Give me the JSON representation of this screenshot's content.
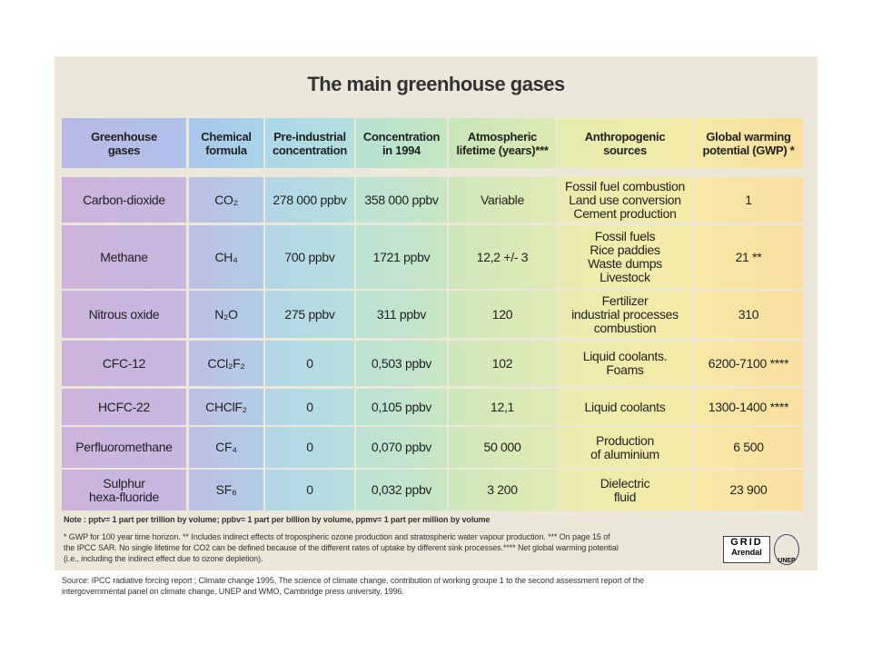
{
  "title": "The main greenhouse gases",
  "table": {
    "header": [
      [
        "Greenhouse",
        "gases"
      ],
      [
        "Chemical",
        "formula"
      ],
      [
        "Pre-industrial",
        "concentration"
      ],
      [
        "Concentration",
        "in 1994"
      ],
      [
        "Atmospheric",
        "lifetime (years)***"
      ],
      [
        "Anthropogenic",
        "sources"
      ],
      [
        "Global warming",
        "potential (GWP) *"
      ]
    ],
    "rows": [
      [
        [
          "Carbon-dioxide"
        ],
        [
          "CO₂"
        ],
        [
          "278 000 ppbv"
        ],
        [
          "358 000 ppbv"
        ],
        [
          "Variable"
        ],
        [
          "Fossil fuel combustion",
          "Land use conversion",
          "Cement production"
        ],
        [
          "1"
        ]
      ],
      [
        [
          "Methane"
        ],
        [
          "CH₄"
        ],
        [
          "700 ppbv"
        ],
        [
          "1721 ppbv"
        ],
        [
          "12,2 +/- 3"
        ],
        [
          "Fossil fuels",
          "Rice paddies",
          "Waste dumps",
          "Livestock"
        ],
        [
          "21 **"
        ]
      ],
      [
        [
          "Nitrous oxide"
        ],
        [
          "N₂O"
        ],
        [
          "275 ppbv"
        ],
        [
          "311 ppbv"
        ],
        [
          "120"
        ],
        [
          "Fertilizer",
          "industrial processes",
          "combustion"
        ],
        [
          "310"
        ]
      ],
      [
        [
          "CFC-12"
        ],
        [
          "CCl₂F₂"
        ],
        [
          "0"
        ],
        [
          "0,503 ppbv"
        ],
        [
          "102"
        ],
        [
          "Liquid coolants.",
          "Foams"
        ],
        [
          "6200-7100 ****"
        ]
      ],
      [
        [
          "HCFC-22"
        ],
        [
          "CHClF₂"
        ],
        [
          "0"
        ],
        [
          "0,105 ppbv"
        ],
        [
          "12,1"
        ],
        [
          "Liquid coolants"
        ],
        [
          "1300-1400 ****"
        ]
      ],
      [
        [
          "Perfluoromethane"
        ],
        [
          "CF₄"
        ],
        [
          "0"
        ],
        [
          "0,070 ppbv"
        ],
        [
          "50 000"
        ],
        [
          "Production",
          "of aluminium"
        ],
        [
          "6 500"
        ]
      ],
      [
        [
          "Sulphur",
          "hexa-fluoride"
        ],
        [
          "SF₆"
        ],
        [
          "0"
        ],
        [
          "0,032 ppbv"
        ],
        [
          "3 200"
        ],
        [
          "Dielectric",
          "fluid"
        ],
        [
          "23 900"
        ]
      ]
    ]
  },
  "note": "Note : pptv= 1 part per trillion by volume; ppbv= 1 part per billion by volume, ppmv= 1 part per million by volume",
  "footnotes": [
    "* GWP for 100 year time horizon. ** Includes indirect effects of tropospheric ozone production and stratospheric water vapour production. *** On page 15 of",
    "the IPCC SAR. No single lifetime for CO2 can be defined because of the different rates of uptake by different sink processes.**** Net global warming potential",
    "(i.e., including the indirect effect due to ozone depletion)."
  ],
  "logos": {
    "grid": "GRID",
    "arendal": "Arendal",
    "unep": "UNEP"
  },
  "source": [
    "Source: IPCC radiative forcing report ; Climate change 1995, The science of climate change, contribution of working groupe 1 to the second assessment report of the",
    "intergovernmental panel on climate change, UNEP and WMO, Cambridge press university,  1996."
  ]
}
